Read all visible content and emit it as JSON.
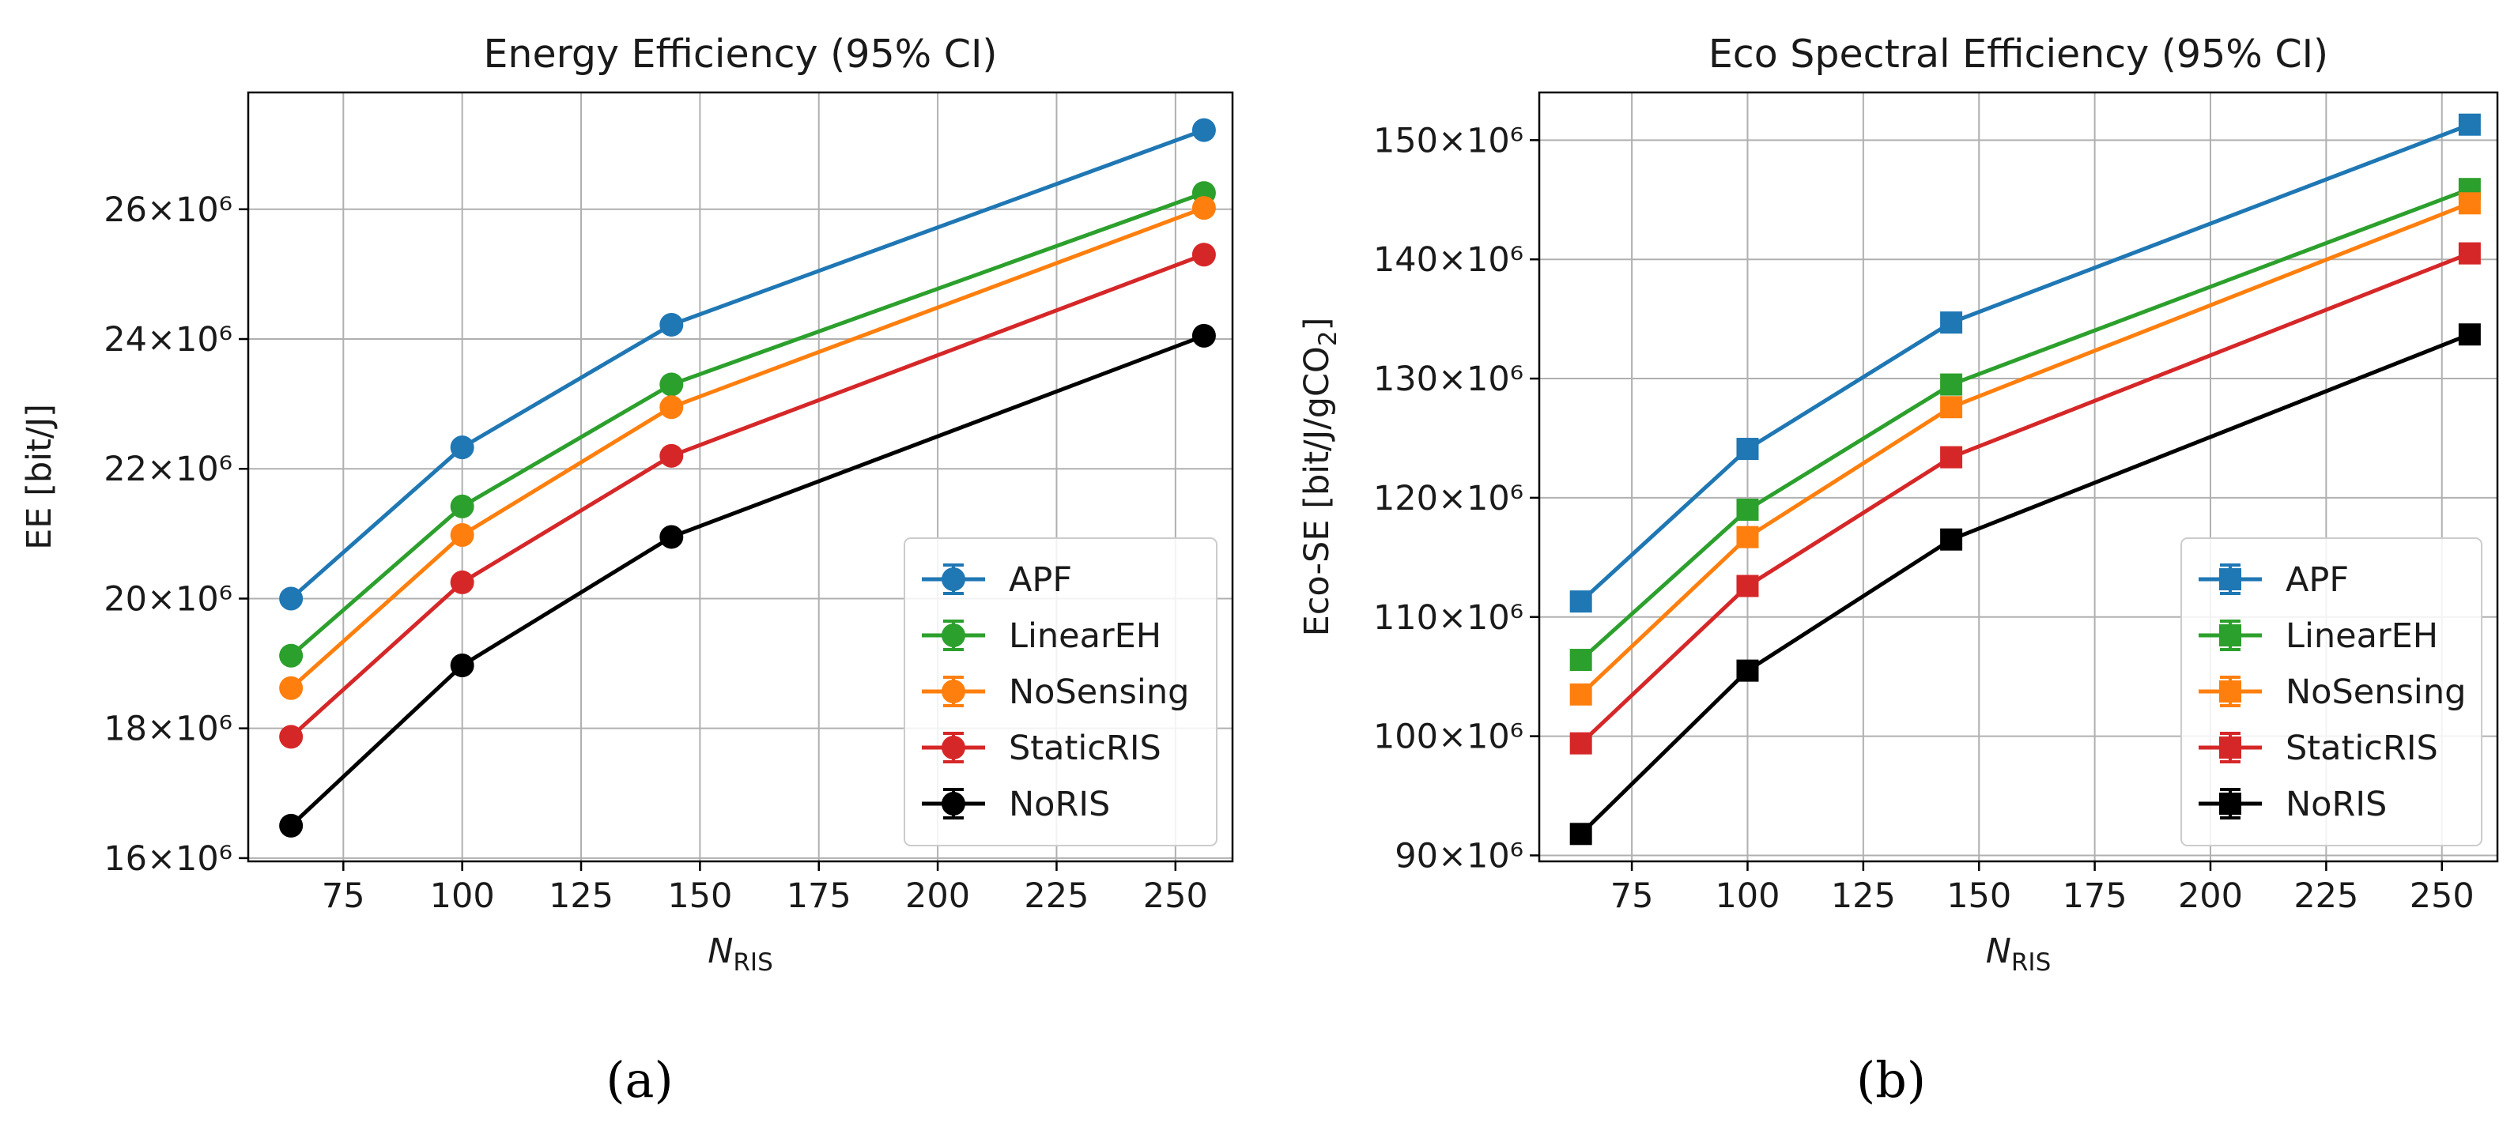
{
  "chart_data": [
    {
      "type": "line",
      "title": "Energy Efficiency (95% CI)",
      "xlabel": "N_RIS",
      "xlabel_main": "N",
      "xlabel_sub": "RIS",
      "ylabel": "EE [bit/J]",
      "xlim": [
        55,
        262
      ],
      "ylim": [
        15.95,
        27.8
      ],
      "xticks": [
        75,
        100,
        125,
        150,
        175,
        200,
        225,
        250
      ],
      "xtick_labels": [
        "75",
        "100",
        "125",
        "150",
        "175",
        "200",
        "225",
        "250"
      ],
      "yticks": [
        16,
        18,
        20,
        22,
        24,
        26
      ],
      "ytick_labels": [
        "16×10⁶",
        "18×10⁶",
        "20×10⁶",
        "22×10⁶",
        "24×10⁶",
        "26×10⁶"
      ],
      "y_unit_multiplier": 1000000,
      "marker": "circle",
      "grid": true,
      "legend_position": "lower-right",
      "x": [
        64,
        100,
        144,
        256
      ],
      "series": [
        {
          "name": "APF",
          "color": "#1f77b4",
          "values": [
            20.0,
            22.33,
            24.22,
            27.22
          ],
          "ci": [
            0.05,
            0.05,
            0.05,
            0.05
          ]
        },
        {
          "name": "LinearEH",
          "color": "#2ca02c",
          "values": [
            19.12,
            21.42,
            23.3,
            26.25
          ],
          "ci": [
            0.05,
            0.05,
            0.05,
            0.05
          ]
        },
        {
          "name": "NoSensing",
          "color": "#ff7f0e",
          "values": [
            18.62,
            20.98,
            22.95,
            26.02
          ],
          "ci": [
            0.05,
            0.05,
            0.05,
            0.05
          ]
        },
        {
          "name": "StaticRIS",
          "color": "#d62728",
          "values": [
            17.87,
            20.25,
            22.2,
            25.3
          ],
          "ci": [
            0.05,
            0.05,
            0.05,
            0.05
          ]
        },
        {
          "name": "NoRIS",
          "color": "#000000",
          "values": [
            16.5,
            18.97,
            20.95,
            24.05
          ],
          "ci": [
            0.05,
            0.05,
            0.05,
            0.05
          ]
        }
      ]
    },
    {
      "type": "line",
      "title": "Eco Spectral Efficiency (95% CI)",
      "xlabel": "N_RIS",
      "xlabel_main": "N",
      "xlabel_sub": "RIS",
      "ylabel": "Eco-SE [bit/J/gCO2]",
      "ylabel_main": "Eco-SE [bit/J/gCO",
      "ylabel_sub": "2",
      "ylabel_tail": "]",
      "xlim": [
        55,
        262
      ],
      "ylim": [
        89.5,
        154.0
      ],
      "xticks": [
        75,
        100,
        125,
        150,
        175,
        200,
        225,
        250
      ],
      "xtick_labels": [
        "75",
        "100",
        "125",
        "150",
        "175",
        "200",
        "225",
        "250"
      ],
      "yticks": [
        90,
        100,
        110,
        120,
        130,
        140,
        150
      ],
      "ytick_labels": [
        "90×10⁶",
        "100×10⁶",
        "110×10⁶",
        "120×10⁶",
        "130×10⁶",
        "140×10⁶",
        "150×10⁶"
      ],
      "y_unit_multiplier": 1000000,
      "marker": "square",
      "grid": true,
      "legend_position": "lower-right",
      "x": [
        64,
        100,
        144,
        256
      ],
      "series": [
        {
          "name": "APF",
          "color": "#1f77b4",
          "values": [
            111.3,
            124.1,
            134.7,
            151.3
          ],
          "ci": [
            0.4,
            0.4,
            0.4,
            0.4
          ]
        },
        {
          "name": "LinearEH",
          "color": "#2ca02c",
          "values": [
            106.4,
            119.0,
            129.5,
            145.9
          ],
          "ci": [
            0.4,
            0.4,
            0.4,
            0.4
          ]
        },
        {
          "name": "NoSensing",
          "color": "#ff7f0e",
          "values": [
            103.5,
            116.7,
            127.6,
            144.7
          ],
          "ci": [
            0.4,
            0.4,
            0.4,
            0.4
          ]
        },
        {
          "name": "StaticRIS",
          "color": "#d62728",
          "values": [
            99.4,
            112.6,
            123.4,
            140.5
          ],
          "ci": [
            0.4,
            0.4,
            0.4,
            0.4
          ]
        },
        {
          "name": "NoRIS",
          "color": "#000000",
          "values": [
            91.8,
            105.5,
            116.5,
            133.7
          ],
          "ci": [
            0.4,
            0.4,
            0.4,
            0.4
          ]
        }
      ]
    }
  ],
  "captions": {
    "a": "(a)",
    "b": "(b)"
  }
}
